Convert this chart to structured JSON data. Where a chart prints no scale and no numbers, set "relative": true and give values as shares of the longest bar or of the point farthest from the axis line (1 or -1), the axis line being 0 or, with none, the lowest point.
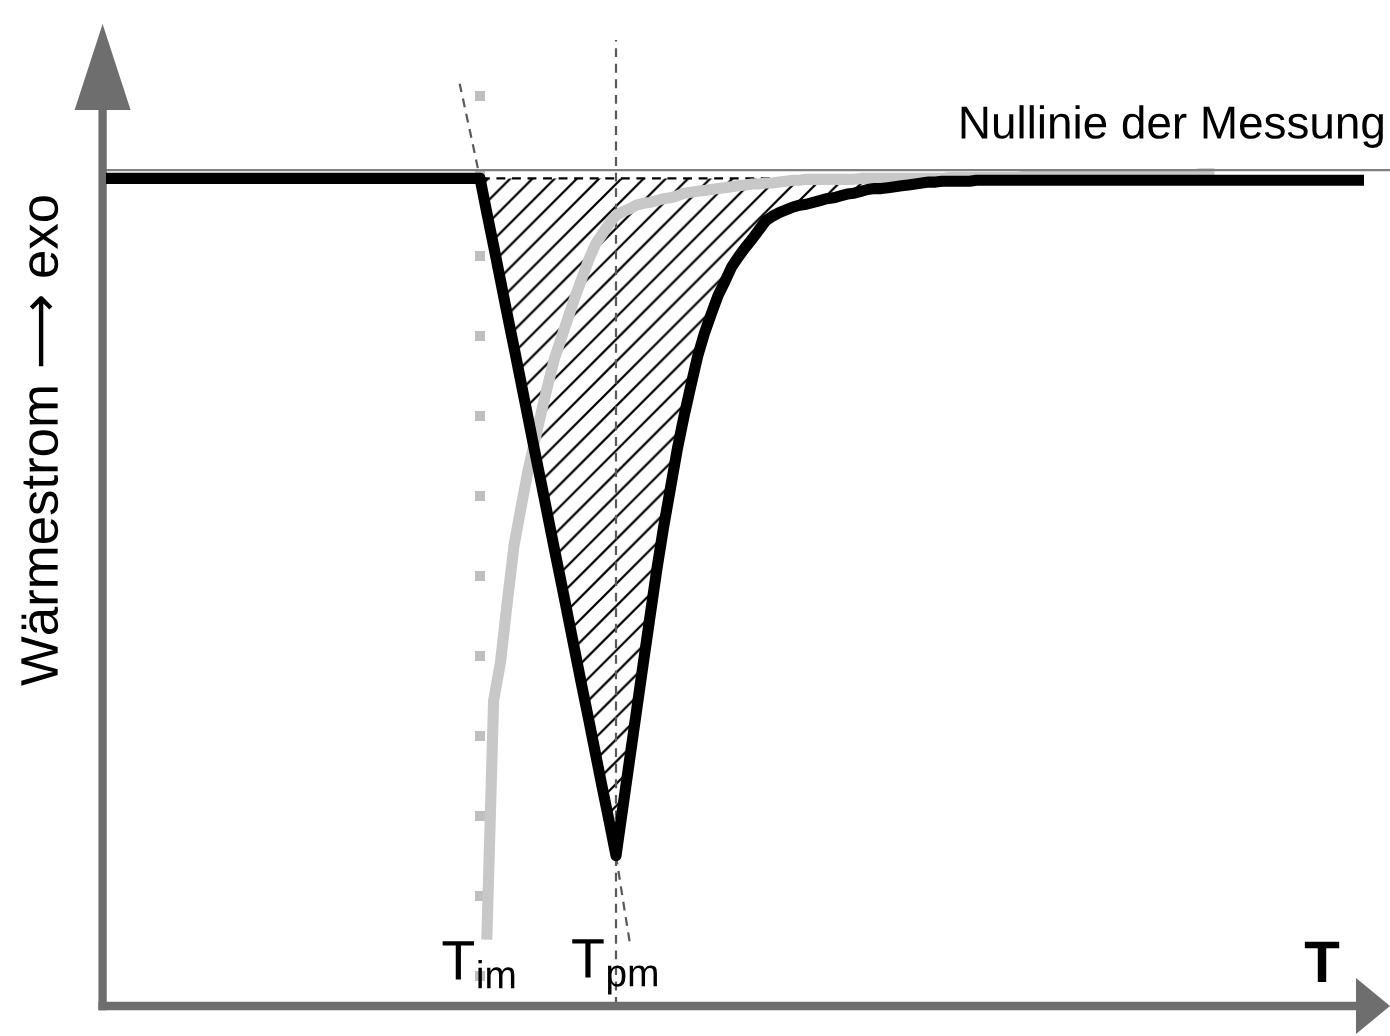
{
  "chart_data": {
    "type": "line",
    "relative": true,
    "ylabel": "Wärmestrom ⟶ exo",
    "xlabel": "T",
    "tick_labels": "x",
    "categories": [
      null,
      null,
      null,
      null,
      null,
      null,
      null,
      null,
      null,
      null,
      null,
      null,
      null,
      null,
      null,
      null,
      null,
      null,
      null,
      null,
      null,
      null,
      null,
      null,
      null,
      null,
      null,
      null,
      null,
      null,
      null,
      null,
      null,
      null,
      null,
      null,
      null,
      null,
      null,
      null,
      null,
      null,
      null,
      null,
      null,
      null,
      null,
      null,
      null,
      null,
      null,
      null,
      null,
      null,
      null,
      "T$_{im}$",
      null,
      null,
      null,
      null,
      null,
      null,
      null,
      null,
      null,
      null,
      null,
      null,
      null,
      null,
      null,
      null,
      null,
      null,
      null,
      "T$_{pm}$",
      null,
      null,
      null,
      null,
      null,
      null,
      null,
      null,
      null,
      null,
      null,
      null,
      null,
      null,
      null,
      null,
      null,
      null,
      null,
      null,
      null,
      null,
      null,
      null,
      null,
      null,
      null,
      null,
      null,
      null,
      null,
      null,
      null,
      null,
      null,
      null,
      null,
      null,
      null,
      null,
      null,
      null,
      null,
      null,
      null,
      null,
      null,
      null,
      null,
      null,
      null,
      null,
      null,
      null,
      null,
      null,
      null,
      null,
      null,
      null,
      null,
      null,
      null,
      null,
      null,
      null,
      null,
      null,
      null,
      null,
      null,
      null,
      null,
      null,
      null,
      null,
      null,
      null,
      null,
      null,
      null,
      null,
      null,
      null,
      null,
      null,
      null,
      null,
      null,
      null,
      null,
      null,
      null,
      null,
      null,
      null,
      null,
      null,
      null,
      null,
      null,
      null,
      null,
      null,
      null,
      null,
      null,
      null,
      null,
      null
    ],
    "ref_lines": [
      {
        "axis": "y",
        "value": 0.906,
        "label": "Nullinie der Messung",
        "color": "#808080",
        "line_style": "solid"
      },
      {
        "axis": "x",
        "value": "T$_{im}$",
        "color": "#c0c0c0",
        "line_style": "dotted"
      },
      {
        "axis": "x",
        "value": "T$_{pm}$",
        "color": "#5a5a5a",
        "line_style": "dashed"
      }
    ],
    "series": [
      {
        "color": "#000000",
        "line_style": "solid",
        "values": [
          0.897,
          0.897,
          0.897,
          0.897,
          0.897,
          0.897,
          0.897,
          0.897,
          0.897,
          0.897,
          0.897,
          0.897,
          0.897,
          0.897,
          0.897,
          0.897,
          0.897,
          0.897,
          0.897,
          0.897,
          0.897,
          0.897,
          0.897,
          0.897,
          0.897,
          0.897,
          0.897,
          0.897,
          0.897,
          0.897,
          0.897,
          0.897,
          0.897,
          0.897,
          0.897,
          0.897,
          0.897,
          0.897,
          0.897,
          0.897,
          0.897,
          0.897,
          0.897,
          0.897,
          0.897,
          0.897,
          0.897,
          0.897,
          0.897,
          0.897,
          0.897,
          0.897,
          0.897,
          0.897,
          0.897,
          0.897,
          0.86,
          0.824,
          0.787,
          0.75,
          0.714,
          0.677,
          0.64,
          0.603,
          0.567,
          0.53,
          0.493,
          0.457,
          0.42,
          0.383,
          0.346,
          0.31,
          0.273,
          0.236,
          0.2,
          0.163,
          0.215,
          0.267,
          0.319,
          0.371,
          0.422,
          0.473,
          0.519,
          0.561,
          0.603,
          0.639,
          0.672,
          0.704,
          0.729,
          0.75,
          0.77,
          0.785,
          0.801,
          0.812,
          0.822,
          0.831,
          0.841,
          0.851,
          0.856,
          0.86,
          0.863,
          0.866,
          0.868,
          0.869,
          0.871,
          0.873,
          0.875,
          0.876,
          0.878,
          0.88,
          0.881,
          0.883,
          0.885,
          0.886,
          0.886,
          0.887,
          0.888,
          0.889,
          0.89,
          0.891,
          0.892,
          0.893,
          0.893,
          0.894,
          0.894,
          0.894,
          0.894,
          0.894,
          0.895,
          0.895,
          0.895,
          0.895,
          0.895,
          0.895,
          0.895,
          0.895,
          0.895,
          0.895,
          0.895,
          0.895,
          0.895,
          0.895,
          0.895,
          0.895,
          0.895,
          0.895,
          0.895,
          0.895,
          0.895,
          0.895,
          0.895,
          0.895,
          0.895,
          0.895,
          0.895,
          0.895,
          0.895,
          0.895,
          0.895,
          0.895,
          0.895,
          0.895,
          0.895,
          0.895,
          0.895,
          0.895,
          0.895,
          0.895,
          0.895,
          0.895,
          0.895,
          0.895,
          0.895,
          0.895,
          0.895,
          0.895,
          0.895,
          0.895,
          0.895,
          0.895,
          0.895,
          0.895,
          0.895,
          0.895,
          0.895,
          0.895
        ],
        "lower": [
          null,
          null,
          null,
          null,
          null,
          null,
          null,
          null,
          null,
          null,
          null,
          null,
          null,
          null,
          null,
          null,
          null,
          null,
          null,
          null,
          null,
          null,
          null,
          null,
          null,
          null,
          null,
          null,
          null,
          null,
          null,
          null,
          null,
          null,
          null,
          null,
          null,
          null,
          null,
          null,
          null,
          null,
          null,
          null,
          null,
          null,
          null,
          null,
          null,
          null,
          null,
          null,
          null,
          null,
          null,
          0.897,
          0.86,
          0.824,
          0.787,
          0.75,
          0.714,
          0.677,
          0.64,
          0.603,
          0.567,
          0.53,
          0.493,
          0.457,
          0.42,
          0.383,
          0.346,
          0.31,
          0.273,
          0.236,
          0.2,
          0.163,
          0.215,
          0.267,
          0.319,
          0.371,
          0.422,
          0.473,
          0.519,
          0.561,
          0.603,
          0.639,
          0.672,
          0.704,
          0.729,
          0.75,
          0.77,
          0.785,
          0.801,
          0.812,
          0.822,
          0.831,
          0.841,
          0.851,
          0.856,
          0.86,
          0.863,
          0.866,
          0.868,
          0.869,
          0.871,
          0.873,
          0.875,
          0.876,
          0.878,
          0.88,
          0.881,
          0.883,
          0.885,
          0.886,
          0.886,
          0.887,
          0.888,
          0.889,
          0.89,
          0.891,
          0.892,
          0.893,
          0.893,
          null,
          null,
          null,
          null,
          null,
          null,
          null,
          null,
          null,
          null,
          null,
          null,
          null,
          null,
          null,
          null,
          null,
          null,
          null,
          null,
          null,
          null,
          null,
          null,
          null,
          null,
          null,
          null,
          null,
          null,
          null,
          null,
          null,
          null,
          null,
          null,
          null,
          null,
          null,
          null,
          null,
          null,
          null,
          null,
          null,
          null,
          null,
          null,
          null,
          null,
          null,
          null,
          null,
          null,
          null,
          null,
          null,
          null,
          null,
          null,
          null,
          null,
          null
        ],
        "upper": [
          null,
          null,
          null,
          null,
          null,
          null,
          null,
          null,
          null,
          null,
          null,
          null,
          null,
          null,
          null,
          null,
          null,
          null,
          null,
          null,
          null,
          null,
          null,
          null,
          null,
          null,
          null,
          null,
          null,
          null,
          null,
          null,
          null,
          null,
          null,
          null,
          null,
          null,
          null,
          null,
          null,
          null,
          null,
          null,
          null,
          null,
          null,
          null,
          null,
          null,
          null,
          null,
          null,
          null,
          null,
          0.897,
          0.897,
          0.897,
          0.897,
          0.897,
          0.897,
          0.897,
          0.897,
          0.897,
          0.897,
          0.897,
          0.897,
          0.897,
          0.897,
          0.897,
          0.897,
          0.897,
          0.897,
          0.897,
          0.897,
          0.897,
          0.897,
          0.897,
          0.897,
          0.897,
          0.897,
          0.897,
          0.897,
          0.897,
          0.897,
          0.897,
          0.897,
          0.897,
          0.897,
          0.897,
          0.897,
          0.897,
          0.897,
          0.897,
          0.897,
          0.897,
          0.897,
          0.897,
          0.897,
          0.897,
          0.897,
          0.897,
          0.897,
          0.897,
          0.897,
          0.897,
          0.897,
          0.897,
          0.897,
          0.897,
          0.897,
          0.897,
          0.897,
          0.897,
          0.897,
          0.897,
          0.897,
          0.897,
          0.897,
          0.897,
          0.897,
          0.897,
          0.897,
          null,
          null,
          null,
          null,
          null,
          null,
          null,
          null,
          null,
          null,
          null,
          null,
          null,
          null,
          null,
          null,
          null,
          null,
          null,
          null,
          null,
          null,
          null,
          null,
          null,
          null,
          null,
          null,
          null,
          null,
          null,
          null,
          null,
          null,
          null,
          null,
          null,
          null,
          null,
          null,
          null,
          null,
          null,
          null,
          null,
          null,
          null,
          null,
          null,
          null,
          null,
          null,
          null,
          null,
          null,
          null,
          null,
          null,
          null,
          null,
          null,
          null,
          null
        ]
      },
      {
        "color": "#c8c8c8",
        "line_style": "solid",
        "values": [
          null,
          null,
          null,
          null,
          null,
          null,
          null,
          null,
          null,
          null,
          null,
          null,
          null,
          null,
          null,
          null,
          null,
          null,
          null,
          null,
          null,
          null,
          null,
          null,
          null,
          null,
          null,
          null,
          null,
          null,
          null,
          null,
          null,
          null,
          null,
          null,
          null,
          null,
          null,
          null,
          null,
          null,
          null,
          null,
          null,
          null,
          null,
          null,
          null,
          null,
          null,
          null,
          null,
          null,
          null,
          null,
          0.072,
          0.331,
          0.372,
          0.437,
          0.499,
          0.539,
          0.578,
          0.611,
          0.643,
          0.674,
          0.703,
          0.725,
          0.747,
          0.769,
          0.789,
          0.809,
          0.826,
          0.837,
          0.848,
          0.857,
          0.861,
          0.864,
          0.868,
          0.87,
          0.871,
          0.873,
          0.875,
          0.876,
          0.878,
          0.881,
          0.882,
          0.883,
          0.884,
          0.885,
          0.886,
          0.887,
          0.888,
          0.889,
          0.89,
          0.891,
          0.891,
          0.892,
          0.892,
          0.893,
          0.894,
          0.895,
          0.895,
          0.896,
          0.896,
          0.896,
          0.896,
          0.896,
          0.896,
          0.896,
          0.896,
          0.897,
          0.897,
          0.897,
          0.897,
          0.897,
          0.897,
          0.897,
          0.897,
          0.897,
          0.897,
          0.897,
          0.897,
          0.897,
          0.898,
          0.898,
          0.898,
          0.898,
          0.898,
          0.898,
          0.898,
          0.898,
          0.898,
          0.898,
          0.898,
          0.899,
          0.899,
          0.899,
          0.899,
          0.899,
          0.899,
          0.899,
          0.899,
          0.899,
          0.9,
          0.9,
          0.9,
          0.9,
          0.9,
          0.9,
          0.9,
          0.9,
          0.9,
          0.901,
          0.901,
          0.901,
          0.901,
          0.901,
          0.901,
          0.901,
          0.901,
          0.902,
          0.902,
          0.902,
          null,
          null,
          null,
          null,
          null,
          null,
          null,
          null,
          null,
          null,
          null,
          null,
          null,
          null,
          null,
          null,
          null,
          null,
          null,
          null,
          null,
          null
        ]
      },
      {
        "color": "#5a5a5a",
        "line_style": "dashed",
        "values": [
          null,
          null,
          null,
          null,
          null,
          null,
          null,
          null,
          null,
          null,
          null,
          null,
          null,
          null,
          null,
          null,
          null,
          null,
          null,
          null,
          null,
          null,
          null,
          null,
          null,
          null,
          null,
          null,
          null,
          null,
          null,
          null,
          null,
          null,
          null,
          null,
          null,
          null,
          null,
          null,
          null,
          null,
          null,
          null,
          null,
          null,
          null,
          null,
          null,
          null,
          null,
          null,
          1.0,
          0.966,
          0.932,
          0.897,
          null,
          null,
          null,
          null,
          null,
          null,
          null,
          null,
          null,
          null,
          null,
          null,
          null,
          null,
          null,
          null,
          null,
          null,
          null,
          null,
          null,
          null,
          null,
          null,
          null,
          null,
          null,
          null,
          null,
          null,
          null,
          null,
          null,
          null,
          null,
          null,
          null,
          null,
          null,
          null,
          null,
          null,
          null,
          null,
          null,
          null,
          null,
          null,
          null,
          null,
          null,
          null,
          null,
          null,
          null,
          null,
          null,
          null,
          null,
          null,
          null,
          null,
          null,
          null,
          null,
          null,
          null,
          null,
          null,
          null,
          null,
          null,
          null,
          null,
          null,
          null,
          null,
          null,
          null,
          null,
          null,
          null,
          null,
          null,
          null,
          null,
          null,
          null,
          null,
          null,
          null,
          null,
          null,
          null,
          null,
          null,
          null,
          null,
          null,
          null,
          null,
          null,
          null,
          null,
          null,
          null,
          null,
          null,
          null,
          null,
          null,
          null,
          null,
          null,
          null,
          null,
          null,
          null,
          null,
          null,
          null,
          null,
          null,
          null,
          null,
          null,
          null,
          null,
          null,
          null
        ]
      },
      {
        "color": "#5a5a5a",
        "line_style": "dashed",
        "values": [
          null,
          null,
          null,
          null,
          null,
          null,
          null,
          null,
          null,
          null,
          null,
          null,
          null,
          null,
          null,
          null,
          null,
          null,
          null,
          null,
          null,
          null,
          null,
          null,
          null,
          null,
          null,
          null,
          null,
          null,
          null,
          null,
          null,
          null,
          null,
          null,
          null,
          null,
          null,
          null,
          null,
          null,
          null,
          null,
          null,
          null,
          null,
          null,
          null,
          null,
          null,
          null,
          null,
          null,
          null,
          null,
          null,
          null,
          null,
          null,
          null,
          null,
          null,
          null,
          null,
          null,
          null,
          null,
          null,
          null,
          null,
          null,
          null,
          null,
          null,
          0.163,
          0.116,
          0.07,
          null,
          null,
          null,
          null,
          null,
          null,
          null,
          null,
          null,
          null,
          null,
          null,
          null,
          null,
          null,
          null,
          null,
          null,
          null,
          null,
          null,
          null,
          null,
          null,
          null,
          null,
          null,
          null,
          null,
          null,
          null,
          null,
          null,
          null,
          null,
          null,
          null,
          null,
          null,
          null,
          null,
          null,
          null,
          null,
          null,
          null,
          null,
          null,
          null,
          null,
          null,
          null,
          null,
          null,
          null,
          null,
          null,
          null,
          null,
          null,
          null,
          null,
          null,
          null,
          null,
          null,
          null,
          null,
          null,
          null,
          null,
          null,
          null,
          null,
          null,
          null,
          null,
          null,
          null,
          null,
          null,
          null,
          null,
          null,
          null,
          null,
          null,
          null,
          null,
          null,
          null,
          null,
          null,
          null,
          null,
          null,
          null,
          null,
          null,
          null,
          null,
          null,
          null,
          null,
          null,
          null,
          null,
          null
        ]
      }
    ]
  }
}
